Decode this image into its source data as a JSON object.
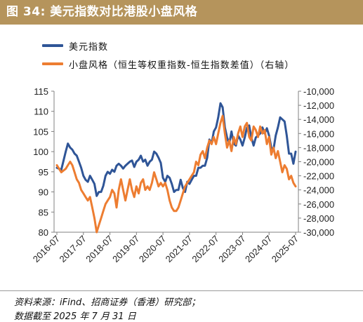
{
  "title": "图 34:  美元指数对比港股小盘风格",
  "legend": {
    "series1": "美元指数",
    "series2": "小盘风格（恒生等权重指数-恒生指数差值）（右轴）"
  },
  "footer": {
    "source": "资料来源：iFind、招商证券（香港）研究部；",
    "date": "数据截至 2025 年 7 月 31 日"
  },
  "colors": {
    "usd": "#2f5597",
    "smallcap": "#ed7d31",
    "title_bg": "#b5945c"
  },
  "chart_data": {
    "type": "line",
    "title": "美元指数对比港股小盘风格",
    "x_ticks": [
      "2016-07",
      "2017-07",
      "2018-07",
      "2019-07",
      "2020-07",
      "2021-07",
      "2022-07",
      "2023-07",
      "2024-07",
      "2025-07"
    ],
    "y_left": {
      "min": 80,
      "max": 115,
      "ticks": [
        "80",
        "85",
        "90",
        "95",
        "100",
        "105",
        "110",
        "115"
      ]
    },
    "y_right": {
      "min": -30000,
      "max": -10000,
      "ticks": [
        "-30,000",
        "-28,000",
        "-26,000",
        "-24,000",
        "-22,000",
        "-20,000",
        "-18,000",
        "-16,000",
        "-14,000",
        "-12,000",
        "-10,000"
      ]
    },
    "series": [
      {
        "name": "美元指数",
        "axis": "left",
        "points": [
          [
            "2016-07",
            96
          ],
          [
            "2016-09",
            95.5
          ],
          [
            "2016-11",
            100
          ],
          [
            "2016-12",
            102
          ],
          [
            "2017-01",
            101
          ],
          [
            "2017-02",
            100.5
          ],
          [
            "2017-03",
            99.5
          ],
          [
            "2017-04",
            99
          ],
          [
            "2017-05",
            97.5
          ],
          [
            "2017-06",
            96
          ],
          [
            "2017-07",
            94
          ],
          [
            "2017-08",
            93
          ],
          [
            "2017-09",
            92.5
          ],
          [
            "2017-10",
            94
          ],
          [
            "2017-11",
            93
          ],
          [
            "2017-12",
            92
          ],
          [
            "2018-01",
            89
          ],
          [
            "2018-02",
            90
          ],
          [
            "2018-03",
            90
          ],
          [
            "2018-04",
            91.5
          ],
          [
            "2018-05",
            94
          ],
          [
            "2018-06",
            95
          ],
          [
            "2018-07",
            94.5
          ],
          [
            "2018-08",
            95.5
          ],
          [
            "2018-09",
            95
          ],
          [
            "2018-10",
            96.5
          ],
          [
            "2018-11",
            97
          ],
          [
            "2018-12",
            96.5
          ],
          [
            "2019-01",
            95.8
          ],
          [
            "2019-02",
            96.5
          ],
          [
            "2019-03",
            97
          ],
          [
            "2019-04",
            97.5
          ],
          [
            "2019-05",
            97.8
          ],
          [
            "2019-06",
            96.2
          ],
          [
            "2019-07",
            97.5
          ],
          [
            "2019-08",
            98
          ],
          [
            "2019-09",
            99
          ],
          [
            "2019-10",
            97.5
          ],
          [
            "2019-11",
            98
          ],
          [
            "2019-12",
            96.5
          ],
          [
            "2020-01",
            97.5
          ],
          [
            "2020-02",
            98
          ],
          [
            "2020-03",
            100
          ],
          [
            "2020-04",
            99.5
          ],
          [
            "2020-05",
            98.5
          ],
          [
            "2020-06",
            97.2
          ],
          [
            "2020-07",
            93.5
          ],
          [
            "2020-08",
            92.5
          ],
          [
            "2020-09",
            94
          ],
          [
            "2020-10",
            93.5
          ],
          [
            "2020-11",
            92
          ],
          [
            "2020-12",
            90
          ],
          [
            "2021-01",
            90.5
          ],
          [
            "2021-02",
            90.5
          ],
          [
            "2021-03",
            93
          ],
          [
            "2021-04",
            91
          ],
          [
            "2021-05",
            90
          ],
          [
            "2021-06",
            92.5
          ],
          [
            "2021-07",
            92
          ],
          [
            "2021-08",
            93
          ],
          [
            "2021-09",
            94
          ],
          [
            "2021-10",
            94
          ],
          [
            "2021-11",
            96
          ],
          [
            "2021-12",
            96
          ],
          [
            "2022-01",
            96.5
          ],
          [
            "2022-02",
            96.5
          ],
          [
            "2022-03",
            98.5
          ],
          [
            "2022-04",
            103
          ],
          [
            "2022-05",
            102
          ],
          [
            "2022-06",
            105
          ],
          [
            "2022-07",
            106
          ],
          [
            "2022-08",
            108.5
          ],
          [
            "2022-09",
            112
          ],
          [
            "2022-10",
            111
          ],
          [
            "2022-11",
            106
          ],
          [
            "2022-12",
            103.5
          ],
          [
            "2023-01",
            102
          ],
          [
            "2023-02",
            105
          ],
          [
            "2023-03",
            102
          ],
          [
            "2023-04",
            101.5
          ],
          [
            "2023-05",
            104
          ],
          [
            "2023-06",
            103
          ],
          [
            "2023-07",
            101.5
          ],
          [
            "2023-08",
            103.5
          ],
          [
            "2023-09",
            106
          ],
          [
            "2023-10",
            106.5
          ],
          [
            "2023-11",
            103.5
          ],
          [
            "2023-12",
            101.5
          ],
          [
            "2024-01",
            103.5
          ],
          [
            "2024-02",
            104
          ],
          [
            "2024-03",
            104.5
          ],
          [
            "2024-04",
            106
          ],
          [
            "2024-05",
            104.5
          ],
          [
            "2024-06",
            105.8
          ],
          [
            "2024-07",
            104
          ],
          [
            "2024-08",
            101
          ],
          [
            "2024-09",
            100.5
          ],
          [
            "2024-10",
            104
          ],
          [
            "2024-11",
            106
          ],
          [
            "2024-12",
            108.5
          ],
          [
            "2025-01",
            108
          ],
          [
            "2025-02",
            107.5
          ],
          [
            "2025-03",
            104
          ],
          [
            "2025-04",
            99.5
          ],
          [
            "2025-05",
            99.5
          ],
          [
            "2025-06",
            97
          ],
          [
            "2025-07",
            100
          ]
        ]
      },
      {
        "name": "小盘风格（恒生等权重指数-恒生指数差值）（右轴）",
        "axis": "right",
        "points": [
          [
            "2016-07",
            -20500
          ],
          [
            "2016-09",
            -21500
          ],
          [
            "2016-11",
            -21000
          ],
          [
            "2016-12",
            -20500
          ],
          [
            "2017-01",
            -20000
          ],
          [
            "2017-02",
            -20500
          ],
          [
            "2017-03",
            -21500
          ],
          [
            "2017-04",
            -22500
          ],
          [
            "2017-05",
            -23000
          ],
          [
            "2017-06",
            -24000
          ],
          [
            "2017-07",
            -24500
          ],
          [
            "2017-08",
            -25000
          ],
          [
            "2017-09",
            -25500
          ],
          [
            "2017-10",
            -25000
          ],
          [
            "2017-11",
            -26500
          ],
          [
            "2017-12",
            -28000
          ],
          [
            "2018-01",
            -30000
          ],
          [
            "2018-02",
            -29000
          ],
          [
            "2018-03",
            -28000
          ],
          [
            "2018-04",
            -27000
          ],
          [
            "2018-05",
            -26000
          ],
          [
            "2018-06",
            -25500
          ],
          [
            "2018-07",
            -25000
          ],
          [
            "2018-08",
            -24000
          ],
          [
            "2018-09",
            -24500
          ],
          [
            "2018-10",
            -26500
          ],
          [
            "2018-11",
            -24000
          ],
          [
            "2018-12",
            -22500
          ],
          [
            "2019-01",
            -24000
          ],
          [
            "2019-02",
            -25500
          ],
          [
            "2019-03",
            -24000
          ],
          [
            "2019-04",
            -22500
          ],
          [
            "2019-05",
            -24000
          ],
          [
            "2019-06",
            -25000
          ],
          [
            "2019-07",
            -23500
          ],
          [
            "2019-08",
            -24500
          ],
          [
            "2019-09",
            -23000
          ],
          [
            "2019-10",
            -22500
          ],
          [
            "2019-11",
            -24000
          ],
          [
            "2019-12",
            -23500
          ],
          [
            "2020-01",
            -24000
          ],
          [
            "2020-02",
            -23000
          ],
          [
            "2020-03",
            -21500
          ],
          [
            "2020-04",
            -22500
          ],
          [
            "2020-05",
            -23500
          ],
          [
            "2020-06",
            -23000
          ],
          [
            "2020-07",
            -23500
          ],
          [
            "2020-08",
            -23000
          ],
          [
            "2020-09",
            -24000
          ],
          [
            "2020-10",
            -25500
          ],
          [
            "2020-11",
            -26500
          ],
          [
            "2020-12",
            -27000
          ],
          [
            "2021-01",
            -27000
          ],
          [
            "2021-02",
            -26500
          ],
          [
            "2021-03",
            -25500
          ],
          [
            "2021-04",
            -24500
          ],
          [
            "2021-05",
            -23500
          ],
          [
            "2021-06",
            -23000
          ],
          [
            "2021-07",
            -22500
          ],
          [
            "2021-08",
            -22000
          ],
          [
            "2021-09",
            -21500
          ],
          [
            "2021-10",
            -20000
          ],
          [
            "2021-11",
            -20500
          ],
          [
            "2021-12",
            -19000
          ],
          [
            "2022-01",
            -18500
          ],
          [
            "2022-02",
            -19500
          ],
          [
            "2022-03",
            -18000
          ],
          [
            "2022-04",
            -17000
          ],
          [
            "2022-05",
            -17500
          ],
          [
            "2022-06",
            -16500
          ],
          [
            "2022-07",
            -17500
          ],
          [
            "2022-08",
            -16000
          ],
          [
            "2022-09",
            -14500
          ],
          [
            "2022-10",
            -13500
          ],
          [
            "2022-11",
            -16000
          ],
          [
            "2022-12",
            -18000
          ],
          [
            "2023-01",
            -17000
          ],
          [
            "2023-02",
            -18500
          ],
          [
            "2023-03",
            -16500
          ],
          [
            "2023-04",
            -17500
          ],
          [
            "2023-05",
            -16000
          ],
          [
            "2023-06",
            -15000
          ],
          [
            "2023-07",
            -16500
          ],
          [
            "2023-08",
            -15000
          ],
          [
            "2023-09",
            -14500
          ],
          [
            "2023-10",
            -16500
          ],
          [
            "2023-11",
            -17000
          ],
          [
            "2023-12",
            -15000
          ],
          [
            "2024-01",
            -15500
          ],
          [
            "2024-02",
            -16500
          ],
          [
            "2024-03",
            -15000
          ],
          [
            "2024-04",
            -16000
          ],
          [
            "2024-05",
            -15500
          ],
          [
            "2024-06",
            -17500
          ],
          [
            "2024-07",
            -16500
          ],
          [
            "2024-08",
            -19000
          ],
          [
            "2024-09",
            -18000
          ],
          [
            "2024-10",
            -19500
          ],
          [
            "2024-11",
            -18500
          ],
          [
            "2024-12",
            -20000
          ],
          [
            "2025-01",
            -21500
          ],
          [
            "2025-02",
            -20500
          ],
          [
            "2025-03",
            -21000
          ],
          [
            "2025-04",
            -22500
          ],
          [
            "2025-05",
            -22000
          ],
          [
            "2025-06",
            -23000
          ],
          [
            "2025-07",
            -23500
          ]
        ]
      }
    ],
    "grid": false,
    "legend_position": "top-left"
  }
}
